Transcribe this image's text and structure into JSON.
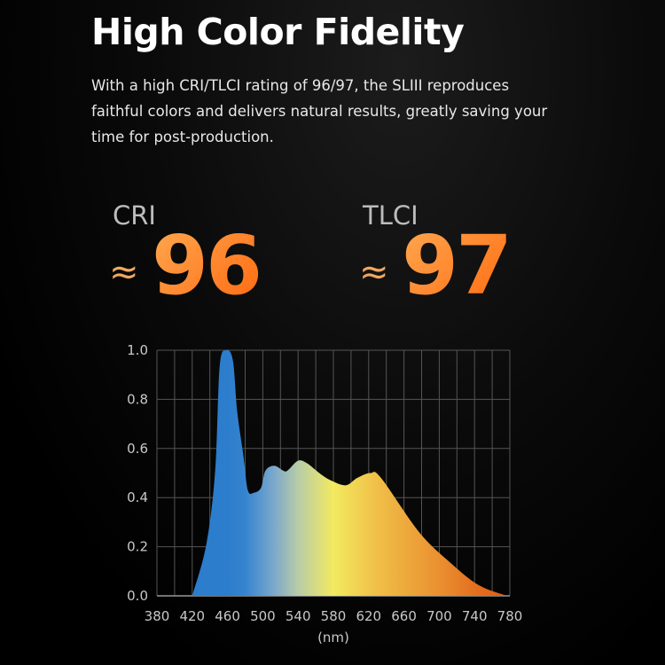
{
  "header": {
    "title": "High Color Fidelity",
    "description": "With a high CRI/TLCI rating of 96/97, the SLIII reproduces faithful colors and delivers natural results, greatly saving your time for post-production."
  },
  "metrics": [
    {
      "label": "CRI",
      "approx": "≈",
      "value": "96"
    },
    {
      "label": "TLCI",
      "approx": "≈",
      "value": "97"
    }
  ],
  "colors": {
    "accent": "#ff7a1a",
    "grid": "#555555"
  },
  "chart_data": {
    "type": "area",
    "xlabel": "(nm)",
    "ylabel": "",
    "xlim": [
      380,
      780
    ],
    "ylim": [
      0,
      1.0
    ],
    "xticks": [
      380,
      420,
      460,
      500,
      540,
      580,
      620,
      660,
      700,
      740,
      780
    ],
    "yticks": [
      "0.0",
      "0.2",
      "0.4",
      "0.6",
      "0.8",
      "1.0"
    ],
    "grid": true,
    "fill": "spectral gradient blue to orange",
    "x": [
      420,
      436,
      446,
      451,
      458,
      466,
      471,
      478,
      483,
      490,
      498,
      503,
      513,
      523,
      528,
      540,
      550,
      564,
      577,
      594,
      607,
      622,
      634,
      677,
      711,
      744,
      777,
      780
    ],
    "y": [
      0.0,
      0.21,
      0.51,
      0.93,
      1.0,
      0.96,
      0.75,
      0.57,
      0.43,
      0.42,
      0.44,
      0.51,
      0.53,
      0.51,
      0.51,
      0.55,
      0.54,
      0.5,
      0.47,
      0.45,
      0.48,
      0.5,
      0.48,
      0.26,
      0.14,
      0.045,
      0.0,
      0.0
    ]
  }
}
